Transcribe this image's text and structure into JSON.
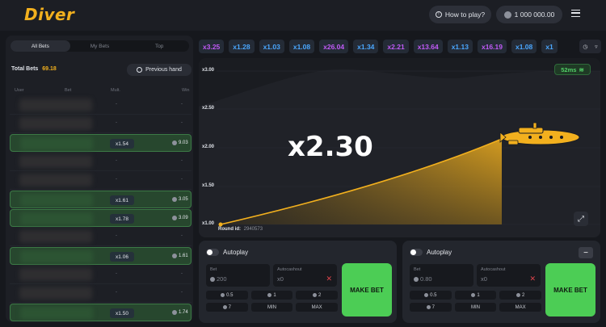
{
  "header": {
    "logo": "Diver",
    "how_to_play": "How to play?",
    "balance": "1 000 000.00"
  },
  "left_panel": {
    "tabs": [
      "All Bets",
      "My Bets",
      "Top"
    ],
    "total_bets_label": "Total Bets",
    "total_bets_value": "69.18",
    "previous_hand": "Previous hand",
    "columns": [
      "User",
      "Bet",
      "Mult.",
      "Win"
    ],
    "rows": [
      {
        "status": "lose",
        "mult": "-",
        "win": "-"
      },
      {
        "status": "lose",
        "mult": "-",
        "win": "-"
      },
      {
        "status": "win",
        "mult": "x1.54",
        "win": "9.03"
      },
      {
        "status": "lose",
        "mult": "-",
        "win": "-"
      },
      {
        "status": "lose",
        "mult": "-",
        "win": "-"
      },
      {
        "status": "win",
        "mult": "x1.61",
        "win": "3.05"
      },
      {
        "status": "win",
        "mult": "x1.78",
        "win": "3.09"
      },
      {
        "status": "lose",
        "mult": "-",
        "win": "-"
      },
      {
        "status": "win",
        "mult": "x1.06",
        "win": "1.61"
      },
      {
        "status": "lose",
        "mult": "-",
        "win": "-"
      },
      {
        "status": "lose",
        "mult": "-",
        "win": "-"
      },
      {
        "status": "win",
        "mult": "x1.50",
        "win": "1.74"
      }
    ]
  },
  "history": [
    {
      "value": "x3.25",
      "color": "purple"
    },
    {
      "value": "x1.28",
      "color": "blue"
    },
    {
      "value": "x1.03",
      "color": "blue"
    },
    {
      "value": "x1.08",
      "color": "blue"
    },
    {
      "value": "x26.04",
      "color": "purple"
    },
    {
      "value": "x1.34",
      "color": "blue"
    },
    {
      "value": "x2.21",
      "color": "purple"
    },
    {
      "value": "x13.64",
      "color": "purple"
    },
    {
      "value": "x1.13",
      "color": "blue"
    },
    {
      "value": "x16.19",
      "color": "purple"
    },
    {
      "value": "x1.08",
      "color": "blue"
    },
    {
      "value": "x1",
      "color": "blue"
    }
  ],
  "game": {
    "ping": "52ms",
    "y_ticks": [
      "x3.00",
      "x2.50",
      "x2.00",
      "x1.50",
      "x1.00"
    ],
    "multiplier": "x2.30",
    "round_label": "Round id:",
    "round_id": "2940573"
  },
  "bet_panels": [
    {
      "autoplay_label": "Autoplay",
      "bet_label": "Bet",
      "bet_value": "200",
      "autocashout_label": "Autocashout",
      "autocashout_value": "x0",
      "chips": [
        "0.5",
        "1",
        "2",
        "7",
        "MIN",
        "MAX"
      ],
      "make_bet": "MAKE BET"
    },
    {
      "autoplay_label": "Autoplay",
      "bet_label": "Bet",
      "bet_value": "0.80",
      "autocashout_label": "Autocashout",
      "autocashout_value": "x0",
      "chips": [
        "0.5",
        "1",
        "2",
        "7",
        "MIN",
        "MAX"
      ],
      "make_bet": "MAKE BET"
    }
  ],
  "colors": {
    "accent_yellow": "#f2b01e",
    "win_green": "#4ccd55",
    "history_blue": "#4aa7ff",
    "history_purple": "#c05af7"
  }
}
